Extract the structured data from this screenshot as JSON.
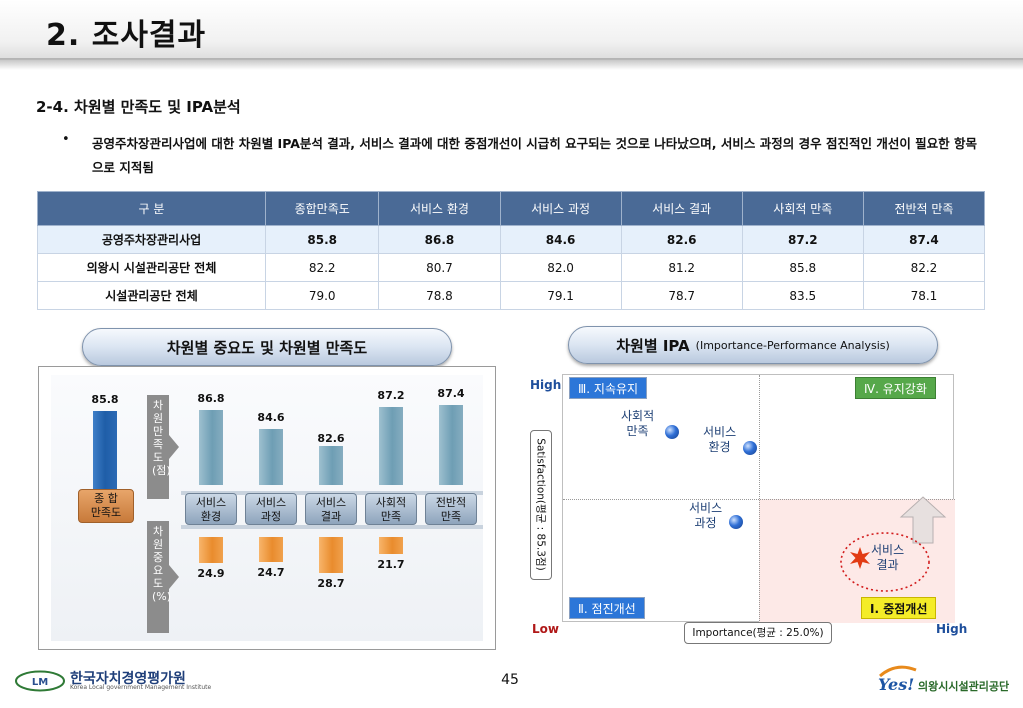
{
  "page": {
    "title": "2. 조사결과",
    "section_heading": "2-4. 차원별 만족도 및 IPA분석",
    "bullet_symbol": "•",
    "bullet_text": "공영주차장관리사업에 대한 차원별 IPA분석 결과, 서비스 결과에 대한 중점개선이 시급히 요구되는 것으로 나타났으며, 서비스 과정의 경우 점진적인 개선이 필요한 항목으로 지적됨",
    "page_number": "45"
  },
  "table": {
    "headers": [
      "구  분",
      "종합만족도",
      "서비스 환경",
      "서비스 과정",
      "서비스 결과",
      "사회적 만족",
      "전반적 만족"
    ],
    "rows": [
      {
        "label": "공영주차장관리사업",
        "values": [
          "85.8",
          "86.8",
          "84.6",
          "82.6",
          "87.2",
          "87.4"
        ]
      },
      {
        "label": "의왕시 시설관리공단 전체",
        "values": [
          "82.2",
          "80.7",
          "82.0",
          "81.2",
          "85.8",
          "82.2"
        ]
      },
      {
        "label": "시설관리공단 전체",
        "values": [
          "79.0",
          "78.8",
          "79.1",
          "78.7",
          "83.5",
          "78.1"
        ]
      }
    ]
  },
  "left_chart": {
    "pill_title": "차원별 중요도 및 차원별 만족도",
    "satisfaction_axis_label": "차원만족도(점)",
    "importance_axis_label": "차원중요도(%)",
    "overall_label_line1": "종  합",
    "overall_label_line2": "만족도",
    "overall_value": "85.8",
    "categories": [
      {
        "line1": "서비스",
        "line2": "환경",
        "satisfaction": "86.8",
        "importance": "24.9"
      },
      {
        "line1": "서비스",
        "line2": "과정",
        "satisfaction": "84.6",
        "importance": "24.7"
      },
      {
        "line1": "서비스",
        "line2": "결과",
        "satisfaction": "82.6",
        "importance": "28.7"
      },
      {
        "line1": "사회적",
        "line2": "만족",
        "satisfaction": "87.2",
        "importance": "21.7"
      },
      {
        "line1": "전반적",
        "line2": "만족",
        "satisfaction": "87.4",
        "importance": ""
      }
    ]
  },
  "ipa": {
    "pill_title": "차원별 IPA",
    "pill_subtitle": "(Importance-Performance Analysis)",
    "quadrants": {
      "q3": "Ⅲ. 지속유지",
      "q4": "Ⅳ. 유지강화",
      "q2": "Ⅱ. 점진개선",
      "q1": "Ⅰ. 중점개선"
    },
    "high_y": "High",
    "low": "Low",
    "high_x": "High",
    "y_axis_label": "Satisfaction(평균 : 85.3점)",
    "x_axis_label": "Importance(평균 : 25.0%)",
    "points": [
      {
        "line1": "사회적",
        "line2": "만족"
      },
      {
        "line1": "서비스",
        "line2": "환경"
      },
      {
        "line1": "서비스",
        "line2": "과정"
      },
      {
        "line1": "서비스",
        "line2": "결과"
      }
    ]
  },
  "footer": {
    "org_name": "한국자치경영평가원",
    "org_sub": "Korea Local government Management Institute",
    "logo_initials": "LM",
    "right_logo_mark": "Yes!",
    "right_logo_text": "의왕시시설관리공단"
  },
  "colors": {
    "table_header": "#4a6a96",
    "satisfaction_bar": "#6e9eb4",
    "overall_bar": "#1f5ea8",
    "importance_bar": "#e98c2d",
    "priority_quadrant": "#fde9e7"
  }
}
